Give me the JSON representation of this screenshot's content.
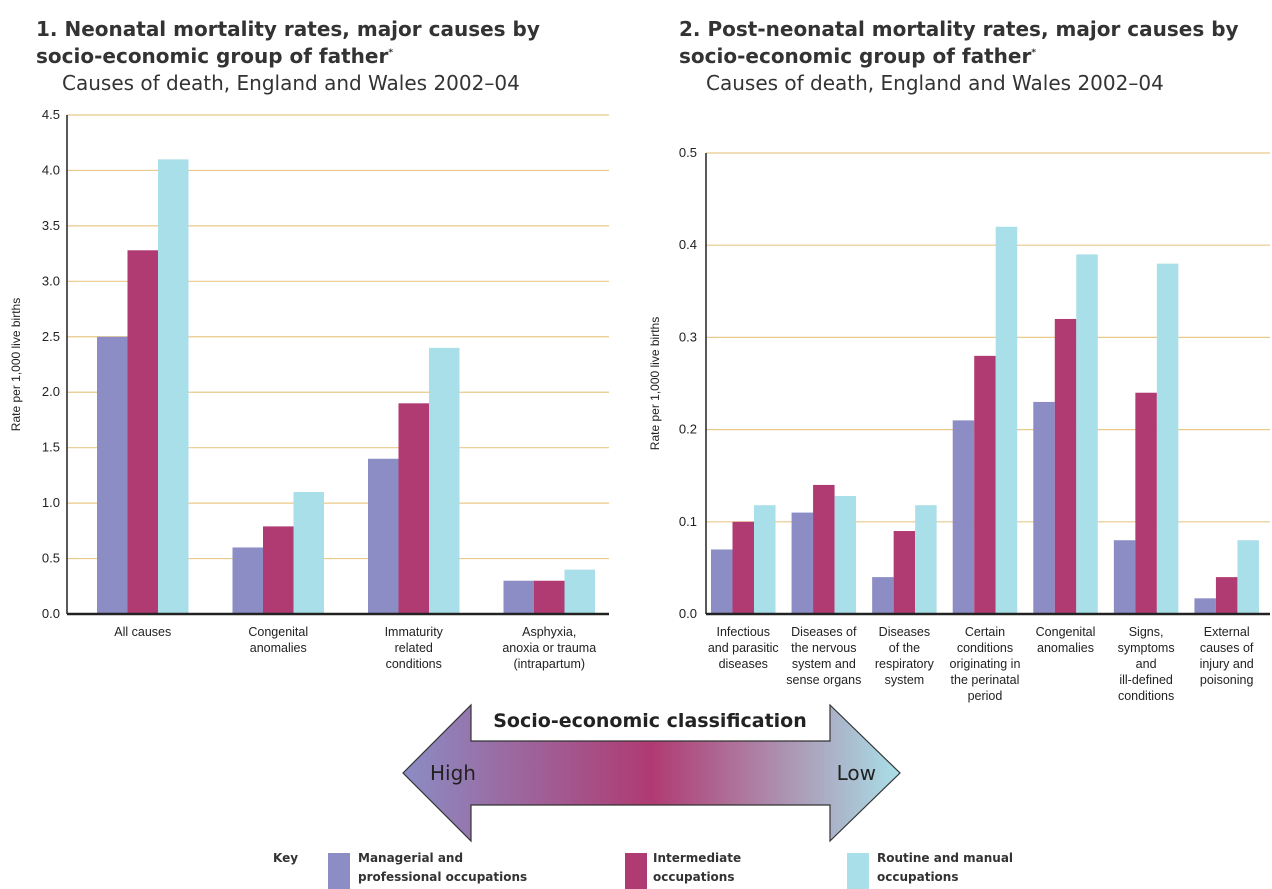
{
  "colors": {
    "managerial": "#8b8dc4",
    "intermediate": "#b03a72",
    "routine": "#a9dfe8",
    "gridline": "#e9c98a",
    "axis": "#222222"
  },
  "key": {
    "label": "Key",
    "items": [
      {
        "line1": "Managerial and",
        "line2": "professional occupations",
        "color": "#8b8dc4"
      },
      {
        "line1": "Intermediate",
        "line2": "occupations",
        "color": "#b03a72"
      },
      {
        "line1": "Routine and manual",
        "line2": "occupations",
        "color": "#a9dfe8"
      }
    ]
  },
  "arrow": {
    "title": "Socio-economic classification",
    "high": "High",
    "low": "Low"
  },
  "chart_data": [
    {
      "type": "bar",
      "title_line1": "1. Neonatal mortality rates, major causes by",
      "title_line2": "socio-economic group of father",
      "title_marker": "*",
      "subtitle": "Causes of death, England and Wales 2002–04",
      "ylabel": "Rate per 1,000 live births",
      "ylim": [
        0,
        4.5
      ],
      "yticks": [
        "0.0",
        "0.5",
        "1.0",
        "1.5",
        "2.0",
        "2.5",
        "3.0",
        "3.5",
        "4.0",
        "4.5"
      ],
      "grid": true,
      "categories": [
        [
          "All causes"
        ],
        [
          "Congenital",
          "anomalies"
        ],
        [
          "Immaturity",
          "related",
          "conditions"
        ],
        [
          "Asphyxia,",
          "anoxia or trauma",
          "(intrapartum)"
        ]
      ],
      "series": [
        {
          "name": "Managerial and professional occupations",
          "values": [
            2.5,
            0.6,
            1.4,
            0.3
          ]
        },
        {
          "name": "Intermediate occupations",
          "values": [
            3.28,
            0.79,
            1.9,
            0.3
          ]
        },
        {
          "name": "Routine and manual occupations",
          "values": [
            4.1,
            1.1,
            2.4,
            0.4
          ]
        }
      ]
    },
    {
      "type": "bar",
      "title_line1": "2. Post-neonatal mortality rates, major causes by",
      "title_line2": "socio-economic group of father",
      "title_marker": "*",
      "subtitle": "Causes of death, England and Wales 2002–04",
      "ylabel": "Rate per 1,000 live births",
      "ylim": [
        0,
        0.5
      ],
      "yticks": [
        "0.0",
        "0.1",
        "0.2",
        "0.3",
        "0.4",
        "0.5"
      ],
      "grid": true,
      "categories": [
        [
          "Infectious",
          "and parasitic",
          "diseases"
        ],
        [
          "Diseases of",
          "the nervous",
          "system and",
          "sense organs"
        ],
        [
          "Diseases",
          "of the",
          "respiratory",
          "system"
        ],
        [
          "Certain",
          "conditions",
          "originating in",
          "the perinatal",
          "period"
        ],
        [
          "Congenital",
          "anomalies"
        ],
        [
          "Signs,",
          "symptoms",
          "and",
          "ill-defined",
          "conditions"
        ],
        [
          "External",
          "causes of",
          "injury and",
          "poisoning"
        ]
      ],
      "series": [
        {
          "name": "Managerial and professional occupations",
          "values": [
            0.07,
            0.11,
            0.04,
            0.21,
            0.23,
            0.08,
            0.017
          ]
        },
        {
          "name": "Intermediate occupations",
          "values": [
            0.1,
            0.14,
            0.09,
            0.28,
            0.32,
            0.24,
            0.04
          ]
        },
        {
          "name": "Routine and manual occupations",
          "values": [
            0.118,
            0.128,
            0.118,
            0.42,
            0.39,
            0.38,
            0.08
          ]
        }
      ]
    }
  ]
}
